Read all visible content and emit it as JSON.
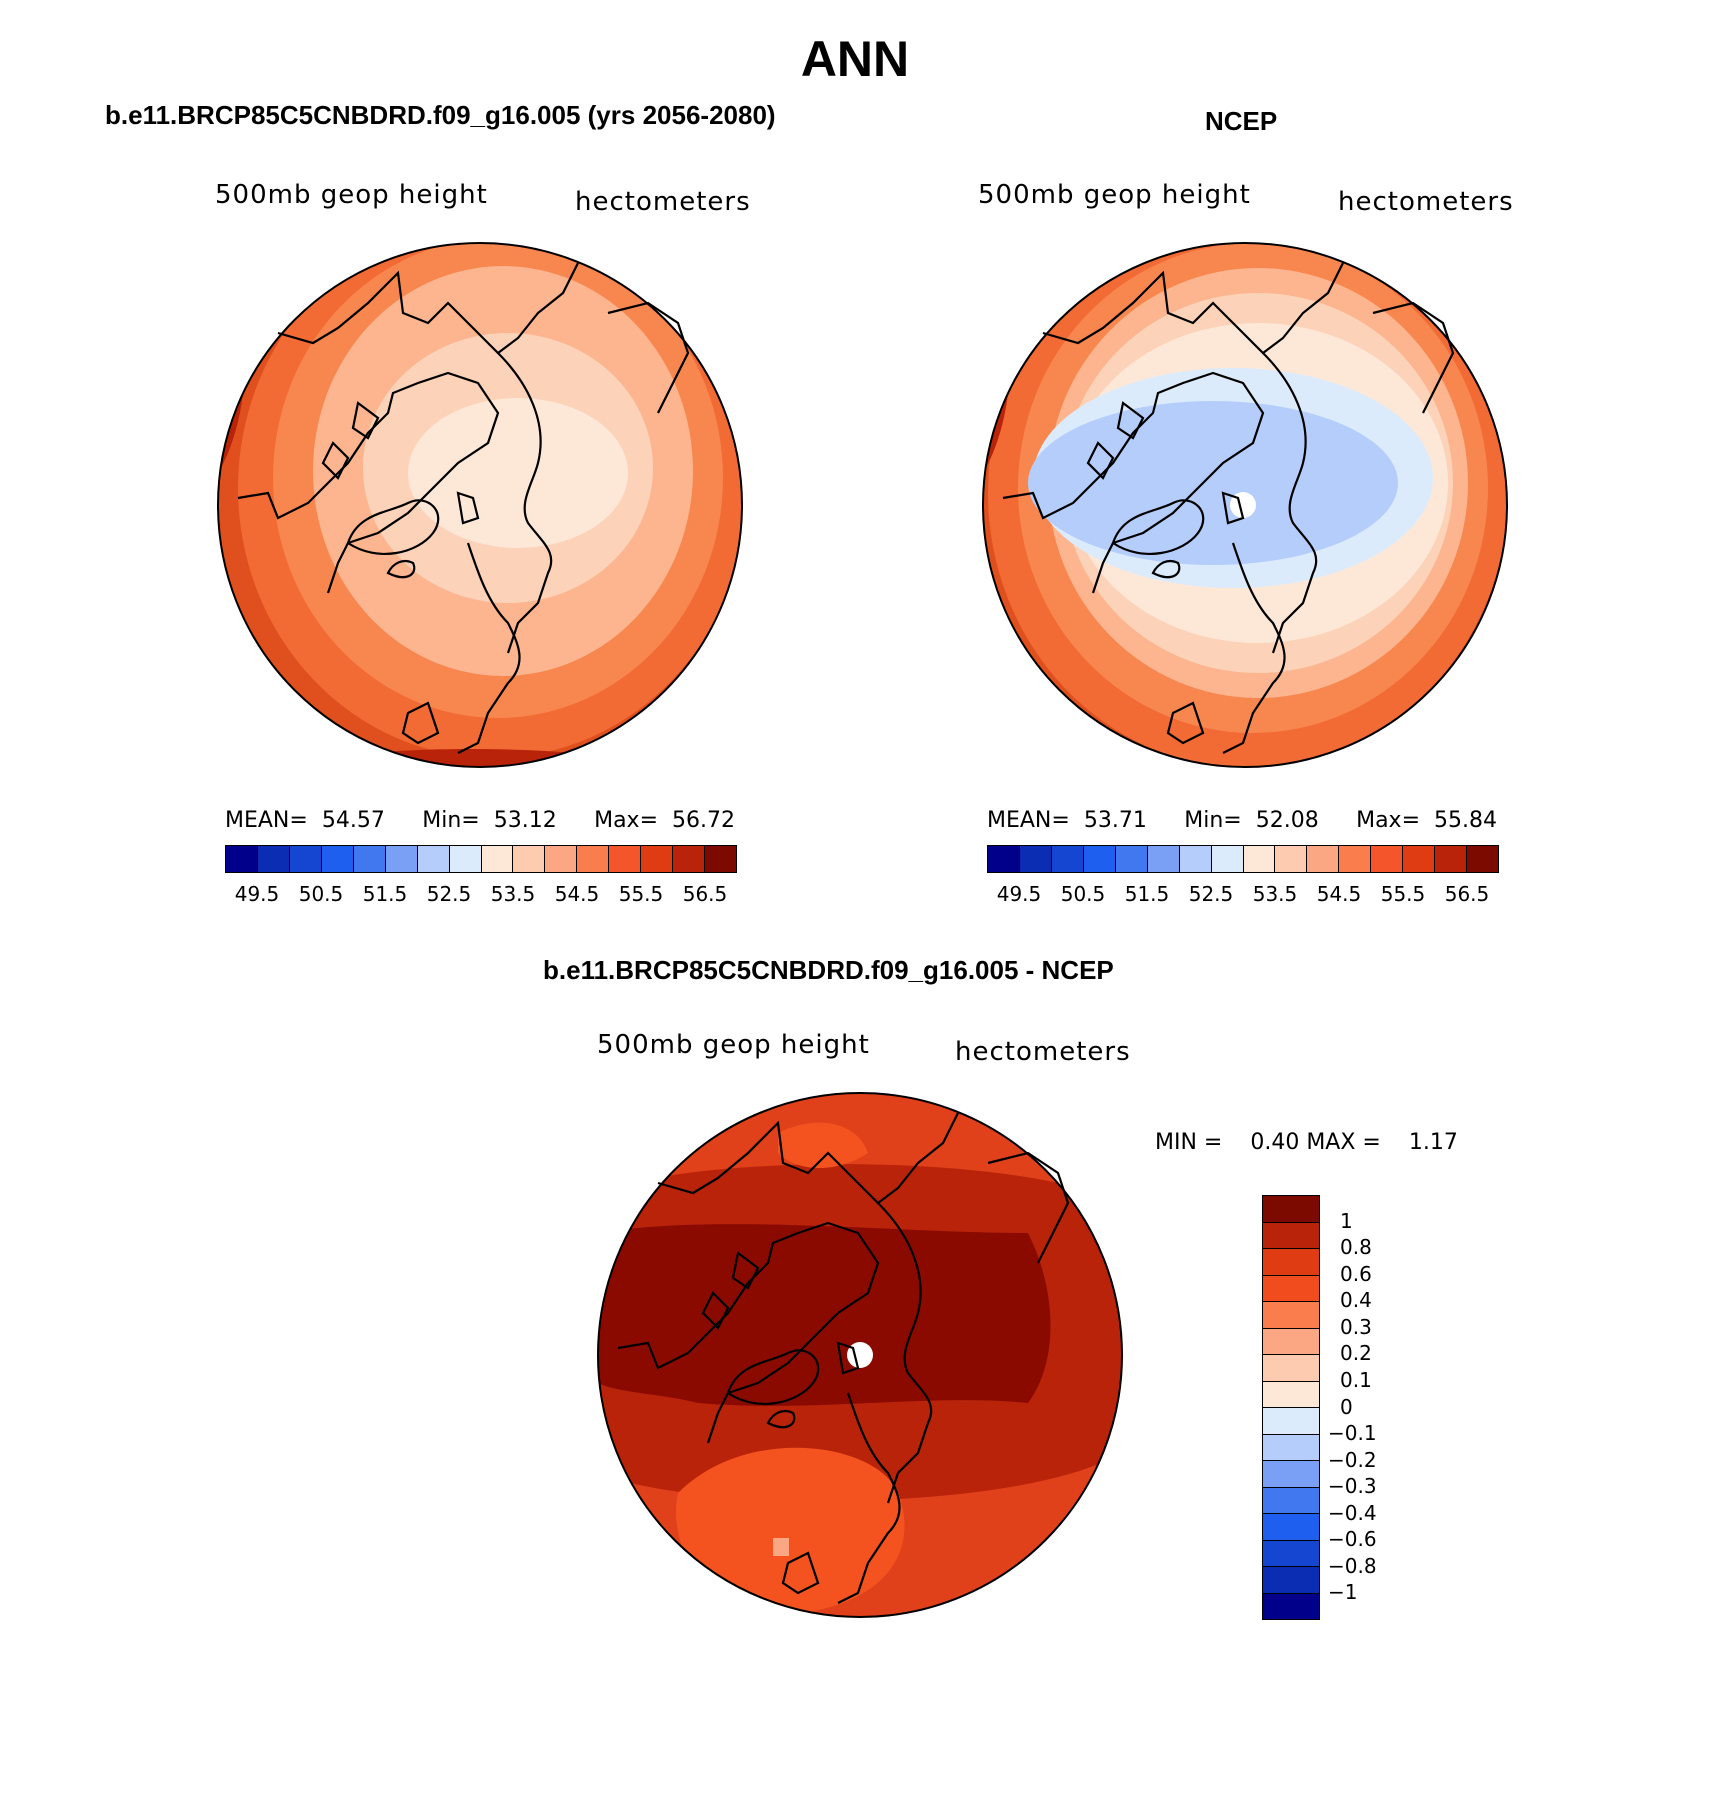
{
  "title": "ANN",
  "panels": {
    "model": {
      "title": "b.e11.BRCP85C5CNBDRD.f09_g16.005 (yrs 2056-2080)",
      "variable": "500mb geop height",
      "units": "hectometers",
      "stats": {
        "mean_label": "MEAN=",
        "mean": "54.57",
        "min_label": "Min=",
        "min": "53.12",
        "max_label": "Max=",
        "max": "56.72"
      }
    },
    "obs": {
      "title": "NCEP",
      "variable": "500mb geop height",
      "units": "hectometers",
      "stats": {
        "mean_label": "MEAN=",
        "mean": "53.71",
        "min_label": "Min=",
        "min": "52.08",
        "max_label": "Max=",
        "max": "55.84"
      }
    },
    "diff": {
      "title": "b.e11.BRCP85C5CNBDRD.f09_g16.005 - NCEP",
      "variable": "500mb geop height",
      "units": "hectometers",
      "stats": {
        "min_label": "MIN =",
        "min": "0.40",
        "max_label": "MAX =",
        "max": "1.17"
      }
    }
  },
  "colorbar_abs": {
    "colors": [
      "#00008b",
      "#0a2db4",
      "#1446d2",
      "#1e5ff0",
      "#4178f0",
      "#7aa0f5",
      "#b4cdfa",
      "#dcebfc",
      "#fde8d8",
      "#fdcbb0",
      "#fca784",
      "#fa7d4e",
      "#f5552a",
      "#e03c14",
      "#b8230a",
      "#7d0a00"
    ],
    "ticks": [
      "49.5",
      "50.5",
      "51.5",
      "52.5",
      "53.5",
      "54.5",
      "55.5",
      "56.5"
    ]
  },
  "colorbar_diff": {
    "colors": [
      "#7d0a00",
      "#b8230a",
      "#e03c14",
      "#f04c1e",
      "#fa7d4e",
      "#fca784",
      "#fdcbb0",
      "#fde8d8",
      "#dcebfc",
      "#b4cdfa",
      "#7aa0f5",
      "#4178f0",
      "#1e5ff0",
      "#1446d2",
      "#0a2db4",
      "#00008b"
    ],
    "ticks": [
      "1",
      "0.8",
      "0.6",
      "0.4",
      "0.3",
      "0.2",
      "0.1",
      "0",
      "−0.1",
      "−0.2",
      "−0.3",
      "−0.4",
      "−0.6",
      "−0.8",
      "−1"
    ]
  }
}
